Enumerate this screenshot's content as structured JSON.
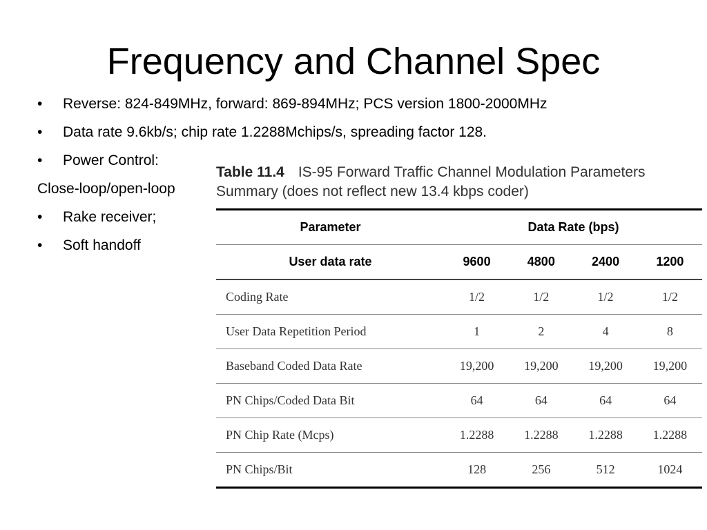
{
  "title": "Frequency and Channel Spec",
  "bullets": [
    {
      "text": "Reverse: 824-849MHz, forward: 869-894MHz; PCS version 1800-2000MHz",
      "bullet": "•"
    },
    {
      "text": "Data rate 9.6kb/s; chip rate 1.2288Mchips/s, spreading factor 128.",
      "bullet": "•"
    },
    {
      "text": "Power Control:",
      "bullet": "•"
    },
    {
      "text": "Close-loop/open-loop",
      "bullet": ""
    },
    {
      "text": "Rake receiver;",
      "bullet": "•"
    },
    {
      "text": "Soft handoff",
      "bullet": "•"
    }
  ],
  "figure": {
    "table_label": "Table 11.4",
    "caption_line1": "IS-95 Forward Traffic Channel Modulation Parameters",
    "caption_line2": "Summary (does not reflect new 13.4 kbps coder)",
    "header": {
      "parameter": "Parameter",
      "data_rate": "Data Rate (bps)"
    },
    "subheader": {
      "label": "User data rate",
      "values": [
        "9600",
        "4800",
        "2400",
        "1200"
      ]
    },
    "rows": [
      {
        "label": "Coding Rate",
        "values": [
          "1/2",
          "1/2",
          "1/2",
          "1/2"
        ]
      },
      {
        "label": "User Data Repetition Period",
        "values": [
          "1",
          "2",
          "4",
          "8"
        ]
      },
      {
        "label": "Baseband Coded Data Rate",
        "values": [
          "19,200",
          "19,200",
          "19,200",
          "19,200"
        ]
      },
      {
        "label": "PN Chips/Coded Data Bit",
        "values": [
          "64",
          "64",
          "64",
          "64"
        ]
      },
      {
        "label": "PN Chip Rate (Mcps)",
        "values": [
          "1.2288",
          "1.2288",
          "1.2288",
          "1.2288"
        ]
      },
      {
        "label": "PN Chips/Bit",
        "values": [
          "128",
          "256",
          "512",
          "1024"
        ]
      }
    ]
  }
}
